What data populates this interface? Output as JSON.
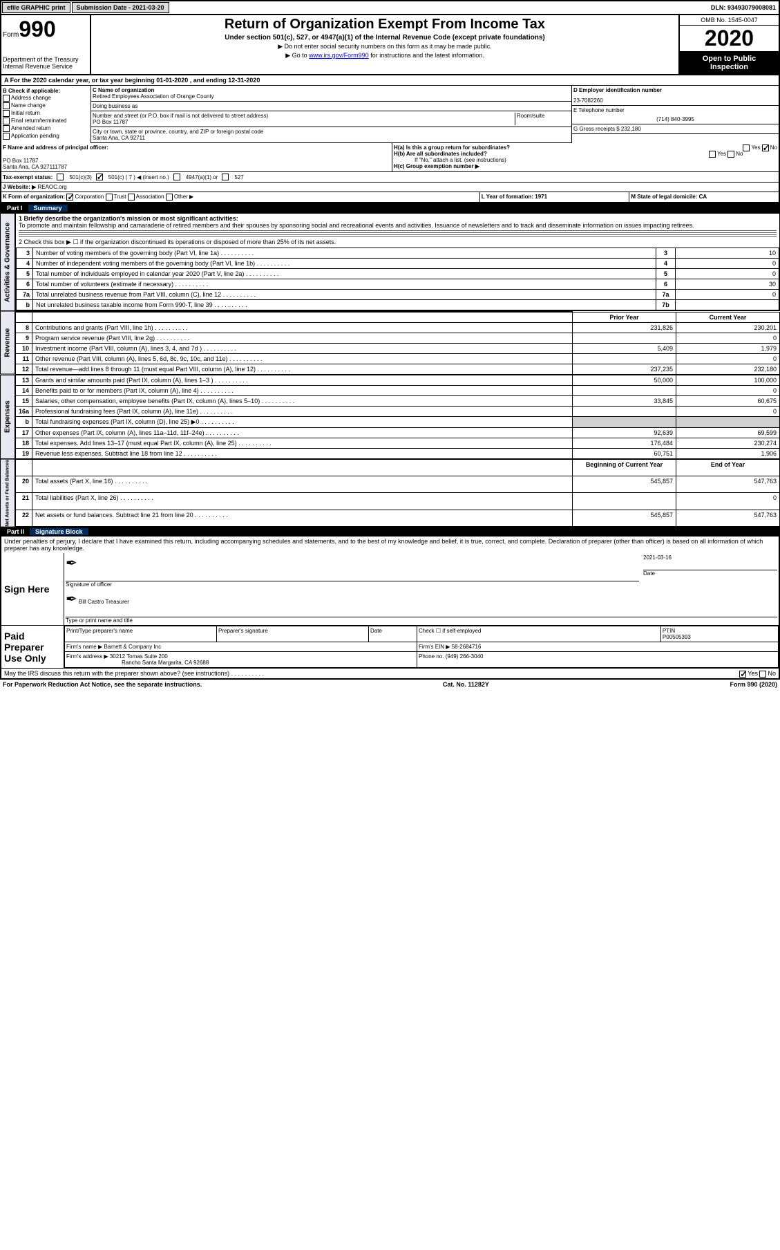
{
  "header": {
    "efile": "efile GRAPHIC print",
    "sub_label": "Submission Date - 2021-03-20",
    "dln": "DLN: 93493079008081"
  },
  "form_top": {
    "form_label": "Form",
    "form_num": "990",
    "dept": "Department of the Treasury\nInternal Revenue Service",
    "title": "Return of Organization Exempt From Income Tax",
    "sub1": "Under section 501(c), 527, or 4947(a)(1) of the Internal Revenue Code (except private foundations)",
    "sub2": "▶ Do not enter social security numbers on this form as it may be made public.",
    "sub3_pre": "▶ Go to ",
    "sub3_link": "www.irs.gov/Form990",
    "sub3_post": " for instructions and the latest information.",
    "omb": "OMB No. 1545-0047",
    "year": "2020",
    "public": "Open to Public Inspection"
  },
  "row_a": "A For the 2020 calendar year, or tax year beginning 01-01-2020    , and ending 12-31-2020",
  "col_b": {
    "hdr": "B Check if applicable:",
    "items": [
      "Address change",
      "Name change",
      "Initial return",
      "Final return/terminated",
      "Amended return",
      "Application pending"
    ]
  },
  "col_c": {
    "name_hdr": "C Name of organization",
    "name": "Retired Employees Association of Orange County",
    "dba_hdr": "Doing business as",
    "dba": "",
    "addr_hdr": "Number and street (or P.O. box if mail is not delivered to street address)",
    "room_hdr": "Room/suite",
    "addr": "PO Box 11787",
    "city_hdr": "City or town, state or province, country, and ZIP or foreign postal code",
    "city": "Santa Ana, CA  92711"
  },
  "col_d": {
    "ein_hdr": "D Employer identification number",
    "ein": "23-7082260",
    "phone_hdr": "E Telephone number",
    "phone": "(714) 840-3995",
    "gross_hdr": "G Gross receipts $ 232,180"
  },
  "f_block": {
    "hdr": "F  Name and address of principal officer:",
    "line1": "PO Box 11787",
    "line2": "Santa Ana, CA  927111787"
  },
  "h_block": {
    "ha": "H(a)  Is this a group return for subordinates?",
    "hb": "H(b)  Are all subordinates included?",
    "hb_note": "If \"No,\" attach a list. (see instructions)",
    "hc": "H(c)  Group exemption number ▶"
  },
  "tax_exempt": "Tax-exempt status:",
  "tax_501c7": "501(c) ( 7 ) ◀ (insert no.)",
  "website_hdr": "J Website: ▶",
  "website": "REAOC.org",
  "k_line": "K Form of organization:",
  "k_opts": [
    "Corporation",
    "Trust",
    "Association",
    "Other ▶"
  ],
  "l_year": "L Year of formation: 1971",
  "m_state": "M State of legal domicile: CA",
  "part1": {
    "pt": "Part I",
    "tt": "Summary"
  },
  "mission_hdr": "1   Briefly describe the organization's mission or most significant activities:",
  "mission": "To promote and maintain fellowship and camaraderie of retired members and their spouses by sponsoring social and recreational events and activities. Issuance of newsletters and to track and disseminate information on issues impacting retirees.",
  "line2_cb": "2   Check this box ▶ ☐ if the organization discontinued its operations or disposed of more than 25% of its net assets.",
  "gov_rows": [
    {
      "n": "3",
      "l": "Number of voting members of the governing body (Part VI, line 1a)",
      "box": "3",
      "v": "10"
    },
    {
      "n": "4",
      "l": "Number of independent voting members of the governing body (Part VI, line 1b)",
      "box": "4",
      "v": "0"
    },
    {
      "n": "5",
      "l": "Total number of individuals employed in calendar year 2020 (Part V, line 2a)",
      "box": "5",
      "v": "0"
    },
    {
      "n": "6",
      "l": "Total number of volunteers (estimate if necessary)",
      "box": "6",
      "v": "30"
    },
    {
      "n": "7a",
      "l": "Total unrelated business revenue from Part VIII, column (C), line 12",
      "box": "7a",
      "v": "0"
    },
    {
      "n": "b",
      "l": "Net unrelated business taxable income from Form 990-T, line 39",
      "box": "7b",
      "v": ""
    }
  ],
  "col_hdrs": {
    "py": "Prior Year",
    "cy": "Current Year"
  },
  "rev_rows": [
    {
      "n": "8",
      "l": "Contributions and grants (Part VIII, line 1h)",
      "py": "231,826",
      "cy": "230,201"
    },
    {
      "n": "9",
      "l": "Program service revenue (Part VIII, line 2g)",
      "py": "",
      "cy": "0"
    },
    {
      "n": "10",
      "l": "Investment income (Part VIII, column (A), lines 3, 4, and 7d )",
      "py": "5,409",
      "cy": "1,979"
    },
    {
      "n": "11",
      "l": "Other revenue (Part VIII, column (A), lines 5, 6d, 8c, 9c, 10c, and 11e)",
      "py": "",
      "cy": "0"
    },
    {
      "n": "12",
      "l": "Total revenue—add lines 8 through 11 (must equal Part VIII, column (A), line 12)",
      "py": "237,235",
      "cy": "232,180"
    }
  ],
  "exp_rows": [
    {
      "n": "13",
      "l": "Grants and similar amounts paid (Part IX, column (A), lines 1–3 )",
      "py": "50,000",
      "cy": "100,000"
    },
    {
      "n": "14",
      "l": "Benefits paid to or for members (Part IX, column (A), line 4)",
      "py": "",
      "cy": "0"
    },
    {
      "n": "15",
      "l": "Salaries, other compensation, employee benefits (Part IX, column (A), lines 5–10)",
      "py": "33,845",
      "cy": "60,675"
    },
    {
      "n": "16a",
      "l": "Professional fundraising fees (Part IX, column (A), line 11e)",
      "py": "",
      "cy": "0"
    },
    {
      "n": "b",
      "l": "Total fundraising expenses (Part IX, column (D), line 25) ▶0",
      "py": "shade",
      "cy": "shade"
    },
    {
      "n": "17",
      "l": "Other expenses (Part IX, column (A), lines 11a–11d, 11f–24e)",
      "py": "92,639",
      "cy": "69,599"
    },
    {
      "n": "18",
      "l": "Total expenses. Add lines 13–17 (must equal Part IX, column (A), line 25)",
      "py": "176,484",
      "cy": "230,274"
    },
    {
      "n": "19",
      "l": "Revenue less expenses. Subtract line 18 from line 12",
      "py": "60,751",
      "cy": "1,906"
    }
  ],
  "net_hdrs": {
    "b": "Beginning of Current Year",
    "e": "End of Year"
  },
  "net_rows": [
    {
      "n": "20",
      "l": "Total assets (Part X, line 16)",
      "py": "545,857",
      "cy": "547,763"
    },
    {
      "n": "21",
      "l": "Total liabilities (Part X, line 26)",
      "py": "",
      "cy": "0"
    },
    {
      "n": "22",
      "l": "Net assets or fund balances. Subtract line 21 from line 20",
      "py": "545,857",
      "cy": "547,763"
    }
  ],
  "part2": {
    "pt": "Part II",
    "tt": "Signature Block"
  },
  "penalties": "Under penalties of perjury, I declare that I have examined this return, including accompanying schedules and statements, and to the best of my knowledge and belief, it is true, correct, and complete. Declaration of preparer (other than officer) is based on all information of which preparer has any knowledge.",
  "sign_here": "Sign Here",
  "sig_officer": "Signature of officer",
  "sig_date_hdr": "Date",
  "sig_date": "2021-03-16",
  "sig_name": "Bill Castro  Treasurer",
  "sig_name_hdr": "Type or print name and title",
  "paid_prep": "Paid Preparer Use Only",
  "prep": {
    "h1": "Print/Type preparer's name",
    "h2": "Preparer's signature",
    "h3": "Date",
    "h4": "Check ☐ if self-employed",
    "ptin_hdr": "PTIN",
    "ptin": "P00505393",
    "firm_hdr": "Firm's name    ▶",
    "firm": "Barnett & Company Inc",
    "ein_hdr": "Firm's EIN ▶",
    "ein": "58-2684716",
    "addr_hdr": "Firm's address ▶",
    "addr1": "30212 Tomas Suite 200",
    "addr2": "Rancho Santa Margarita, CA  92688",
    "phone_hdr": "Phone no.",
    "phone": "(949) 266-3040"
  },
  "discuss": "May the IRS discuss this return with the preparer shown above? (see instructions)",
  "footer": {
    "l": "For Paperwork Reduction Act Notice, see the separate instructions.",
    "c": "Cat. No. 11282Y",
    "r": "Form 990 (2020)"
  },
  "vert_labels": {
    "gov": "Activities & Governance",
    "rev": "Revenue",
    "exp": "Expenses",
    "net": "Net Assets or Fund Balances"
  }
}
